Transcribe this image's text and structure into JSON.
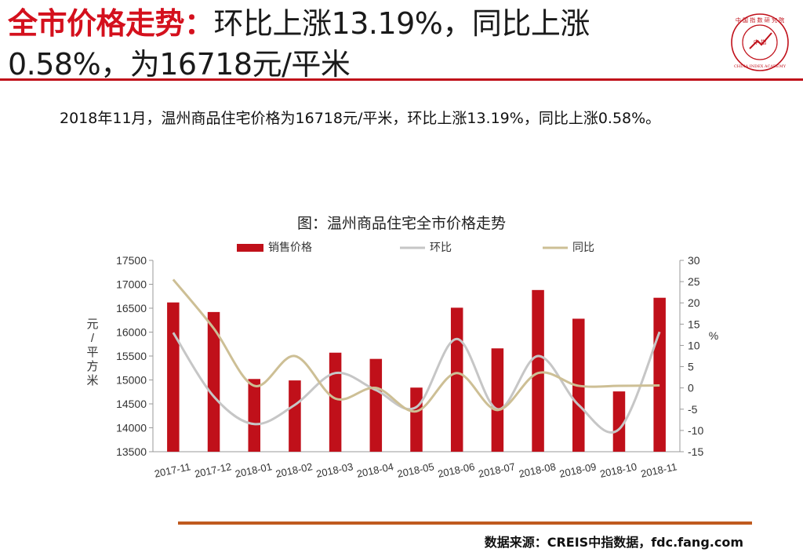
{
  "header": {
    "title_highlight": "全市价格走势：",
    "title_line1_rest": "环比上涨13.19%，同比上涨",
    "title_line2": "0.58%，为16718元/平米"
  },
  "logo": {
    "text_top": "中 国 指 数 研 究 院",
    "text_center": "中 指",
    "text_bottom": "CHINA INDEX ACADEMY"
  },
  "summary": "2018年11月，温州商品住宅价格为16718元/平米，环比上涨13.19%，同比上涨0.58%。",
  "footer": {
    "source": "数据来源：CREIS中指数据，fdc.fang.com"
  },
  "colors": {
    "accent": "#c0101a",
    "bar": "#c0101a",
    "mom_line": "#c6c6c6",
    "yoy_line": "#cdbf95",
    "footer_rule": "#c05a1f"
  },
  "chart_data": {
    "type": "bar",
    "title": "图：温州商品住宅全市价格走势",
    "legend_position": "top",
    "categories": [
      "2017-11",
      "2017-12",
      "2018-01",
      "2018-02",
      "2018-03",
      "2018-04",
      "2018-05",
      "2018-06",
      "2018-07",
      "2018-08",
      "2018-09",
      "2018-10",
      "2018-11"
    ],
    "ylabel": "元/平方米",
    "y2label": "%",
    "ylim": [
      13500,
      17500
    ],
    "y2lim": [
      -15,
      30
    ],
    "yticks": [
      13500,
      14000,
      14500,
      15000,
      15500,
      16000,
      16500,
      17000,
      17500
    ],
    "y2ticks": [
      -15,
      -10,
      -5,
      0,
      5,
      10,
      15,
      20,
      25,
      30
    ],
    "grid": false,
    "series": [
      {
        "name": "销售价格",
        "kind": "bar",
        "axis": "left",
        "values": [
          16620,
          16420,
          15020,
          14990,
          15570,
          15440,
          14840,
          16510,
          15660,
          16880,
          16280,
          14760,
          16718
        ]
      },
      {
        "name": "环比",
        "kind": "line",
        "axis": "right",
        "values": [
          13,
          -2,
          -8.5,
          -4,
          3.5,
          -0.5,
          -4.5,
          11.5,
          -5,
          7.5,
          -4,
          -9.7,
          13.19
        ]
      },
      {
        "name": "同比",
        "kind": "line",
        "axis": "right",
        "values": [
          25.5,
          14,
          0.5,
          7.5,
          -2.5,
          0,
          -5.5,
          3.5,
          -5.2,
          3.5,
          0.5,
          0.5,
          0.58
        ]
      }
    ]
  }
}
